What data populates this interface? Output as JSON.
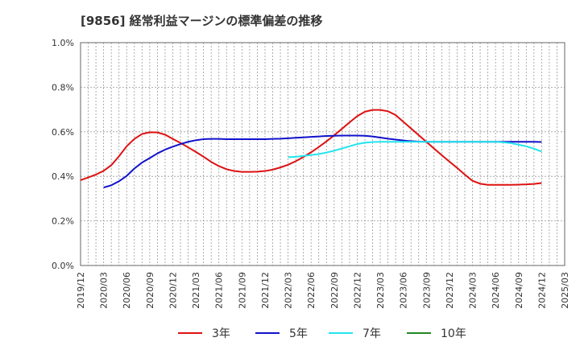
{
  "chart_data": {
    "type": "line",
    "title": "[9856]  経常利益マージンの標準偏差の推移",
    "xlabel": "",
    "ylabel": "",
    "ylim": [
      0,
      1.0
    ],
    "yticks": [
      "0.0%",
      "0.2%",
      "0.4%",
      "0.6%",
      "0.8%",
      "1.0%"
    ],
    "ytick_values": [
      0,
      0.2,
      0.4,
      0.6,
      0.8,
      1.0
    ],
    "x_ticks": [
      "2019/12",
      "2020/03",
      "2020/06",
      "2020/09",
      "2020/12",
      "2021/03",
      "2021/06",
      "2021/09",
      "2021/12",
      "2022/03",
      "2022/06",
      "2022/09",
      "2022/12",
      "2023/03",
      "2023/06",
      "2023/09",
      "2023/12",
      "2024/03",
      "2024/06",
      "2024/09",
      "2024/12",
      "2025/03"
    ],
    "grid": true,
    "legend_position": "bottom",
    "colors": {
      "s3": "#dd1111",
      "s5": "#1111cc",
      "s7": "#22e5ee",
      "s10": "#228822",
      "grid": "#999999",
      "text": "#333333"
    },
    "series": [
      {
        "name": "3年",
        "color": "#dd1111",
        "x": [
          "2019/12",
          "2020/01",
          "2020/02",
          "2020/03",
          "2020/04",
          "2020/05",
          "2020/06",
          "2020/07",
          "2020/08",
          "2020/09",
          "2020/10",
          "2020/11",
          "2020/12",
          "2021/01",
          "2021/02",
          "2021/03",
          "2021/04",
          "2021/05",
          "2021/06",
          "2021/07",
          "2021/08",
          "2021/09",
          "2021/10",
          "2021/11",
          "2021/12",
          "2022/01",
          "2022/02",
          "2022/03",
          "2022/04",
          "2022/05",
          "2022/06",
          "2022/07",
          "2022/08",
          "2022/09",
          "2022/10",
          "2022/11",
          "2022/12",
          "2023/01",
          "2023/02",
          "2023/03",
          "2023/04",
          "2023/05",
          "2023/06",
          "2023/07",
          "2023/08",
          "2023/09",
          "2023/10",
          "2023/11",
          "2023/12",
          "2024/01",
          "2024/02",
          "2024/03",
          "2024/04",
          "2024/05",
          "2024/06",
          "2024/07",
          "2024/08",
          "2024/09",
          "2024/10",
          "2024/11",
          "2024/12"
        ],
        "values": [
          0.383,
          0.395,
          0.408,
          0.425,
          0.45,
          0.49,
          0.535,
          0.568,
          0.59,
          0.598,
          0.597,
          0.587,
          0.568,
          0.55,
          0.53,
          0.51,
          0.488,
          0.465,
          0.446,
          0.432,
          0.424,
          0.42,
          0.42,
          0.421,
          0.424,
          0.43,
          0.44,
          0.452,
          0.468,
          0.487,
          0.508,
          0.532,
          0.557,
          0.584,
          0.613,
          0.642,
          0.67,
          0.69,
          0.698,
          0.698,
          0.692,
          0.675,
          0.645,
          0.615,
          0.585,
          0.555,
          0.525,
          0.495,
          0.466,
          0.438,
          0.408,
          0.38,
          0.367,
          0.362,
          0.362,
          0.362,
          0.362,
          0.363,
          0.364,
          0.366,
          0.37
        ]
      },
      {
        "name": "5年",
        "color": "#1111cc",
        "x": [
          "2020/03",
          "2020/04",
          "2020/05",
          "2020/06",
          "2020/07",
          "2020/08",
          "2020/09",
          "2020/10",
          "2020/11",
          "2020/12",
          "2021/01",
          "2021/02",
          "2021/03",
          "2021/04",
          "2021/05",
          "2021/06",
          "2021/07",
          "2021/08",
          "2021/09",
          "2021/10",
          "2021/11",
          "2021/12",
          "2022/01",
          "2022/02",
          "2022/03",
          "2022/04",
          "2022/05",
          "2022/06",
          "2022/07",
          "2022/08",
          "2022/09",
          "2022/10",
          "2022/11",
          "2022/12",
          "2023/01",
          "2023/02",
          "2023/03",
          "2023/04",
          "2023/05",
          "2023/06",
          "2023/07",
          "2023/08",
          "2023/09",
          "2023/10",
          "2023/11",
          "2023/12",
          "2024/01",
          "2024/02",
          "2024/03",
          "2024/04",
          "2024/05",
          "2024/06",
          "2024/07",
          "2024/08",
          "2024/09",
          "2024/10",
          "2024/11",
          "2024/12"
        ],
        "values": [
          0.35,
          0.36,
          0.378,
          0.402,
          0.435,
          0.462,
          0.482,
          0.503,
          0.52,
          0.533,
          0.545,
          0.555,
          0.562,
          0.567,
          0.568,
          0.568,
          0.567,
          0.567,
          0.567,
          0.567,
          0.567,
          0.567,
          0.568,
          0.569,
          0.571,
          0.573,
          0.575,
          0.577,
          0.579,
          0.581,
          0.582,
          0.583,
          0.583,
          0.583,
          0.582,
          0.579,
          0.574,
          0.569,
          0.565,
          0.561,
          0.558,
          0.556,
          0.555,
          0.555,
          0.555,
          0.555,
          0.555,
          0.555,
          0.555,
          0.555,
          0.555,
          0.555,
          0.555,
          0.555,
          0.555,
          0.555,
          0.555,
          0.554
        ]
      },
      {
        "name": "7年",
        "color": "#22e5ee",
        "x": [
          "2022/03",
          "2022/04",
          "2022/05",
          "2022/06",
          "2022/07",
          "2022/08",
          "2022/09",
          "2022/10",
          "2022/11",
          "2022/12",
          "2023/01",
          "2023/02",
          "2023/03",
          "2023/04",
          "2023/05",
          "2023/06",
          "2023/07",
          "2023/08",
          "2023/09",
          "2023/10",
          "2023/11",
          "2023/12",
          "2024/01",
          "2024/02",
          "2024/03",
          "2024/04",
          "2024/05",
          "2024/06",
          "2024/07",
          "2024/08",
          "2024/09",
          "2024/10",
          "2024/11",
          "2024/12"
        ],
        "values": [
          0.486,
          0.488,
          0.492,
          0.496,
          0.5,
          0.507,
          0.515,
          0.525,
          0.535,
          0.545,
          0.551,
          0.554,
          0.555,
          0.555,
          0.555,
          0.555,
          0.555,
          0.555,
          0.555,
          0.555,
          0.555,
          0.555,
          0.555,
          0.555,
          0.555,
          0.555,
          0.555,
          0.555,
          0.553,
          0.549,
          0.542,
          0.535,
          0.524,
          0.511
        ]
      },
      {
        "name": "10年",
        "color": "#228822",
        "x": [],
        "values": []
      }
    ]
  }
}
